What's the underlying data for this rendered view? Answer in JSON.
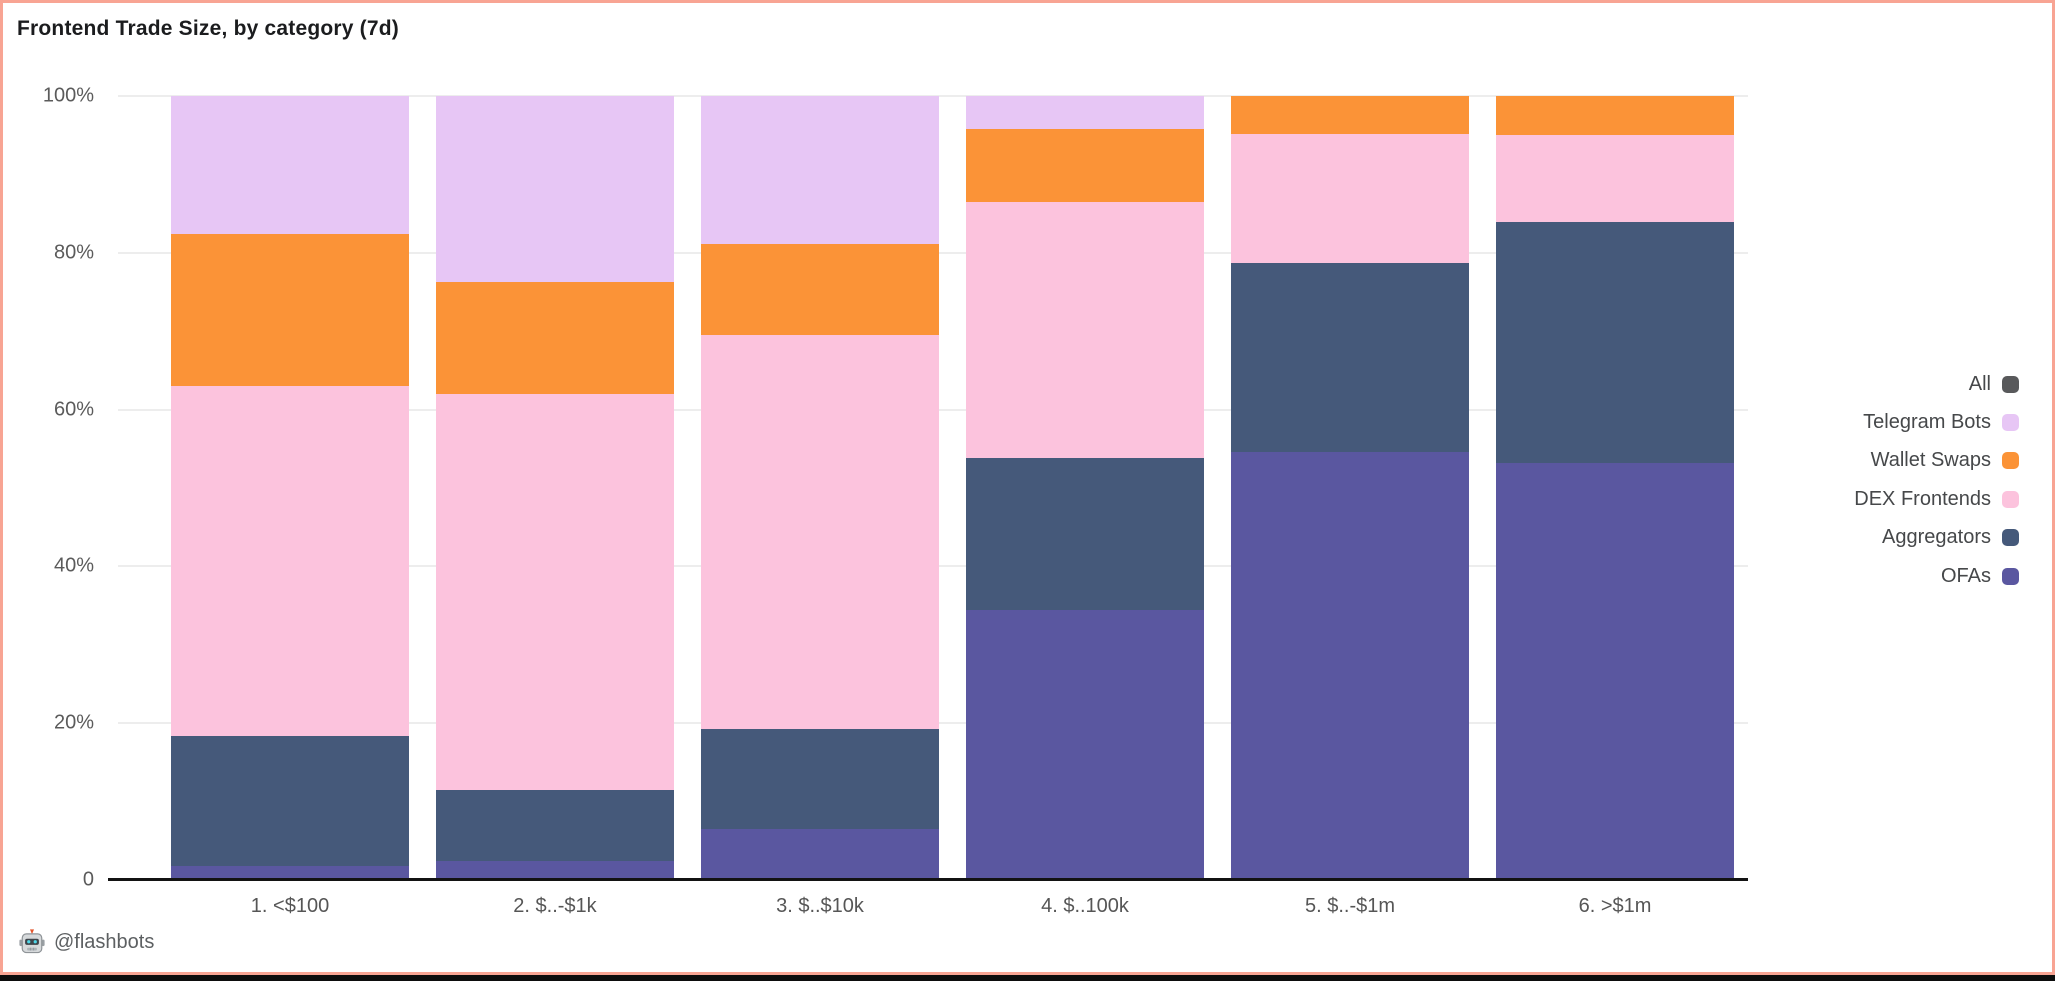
{
  "frame": {
    "border_color": "#f8a493",
    "bottom_bar_color": "#0c0c0c",
    "background": "#ffffff"
  },
  "header": {
    "title": "Frontend Trade Size, by category (7d)"
  },
  "footer": {
    "attribution": "@flashbots",
    "icon": "flashbots-robot-emoji"
  },
  "axes": {
    "y_ticks": [
      {
        "label": "100%",
        "value": 100
      },
      {
        "label": "80%",
        "value": 80
      },
      {
        "label": "60%",
        "value": 60
      },
      {
        "label": "40%",
        "value": 40
      },
      {
        "label": "20%",
        "value": 20
      },
      {
        "label": "0",
        "value": 0
      }
    ],
    "grid_color": "#ededed",
    "axis_line_color": "#131313",
    "tick_label_color": "#5b5b5b"
  },
  "legend": {
    "position": "right",
    "items": [
      {
        "label": "All",
        "color": "#58595b"
      },
      {
        "label": "Telegram Bots",
        "color": "#e7c6f5"
      },
      {
        "label": "Wallet Swaps",
        "color": "#fb9337"
      },
      {
        "label": "DEX Frontends",
        "color": "#fcc3dd"
      },
      {
        "label": "Aggregators",
        "color": "#45597a"
      },
      {
        "label": "OFAs",
        "color": "#5a57a0"
      }
    ]
  },
  "chart_data": {
    "type": "bar",
    "stacked": true,
    "normalized": true,
    "title": "Frontend Trade Size, by category (7d)",
    "xlabel": "",
    "ylabel": "",
    "unit": "percent",
    "ylim": [
      0,
      100
    ],
    "grid": true,
    "legend_position": "right",
    "categories": [
      "1. <$100",
      "2. $..-$1k",
      "3. $..$10k",
      "4. $..100k",
      "5. $..-$1m",
      "6. >$1m"
    ],
    "series": [
      {
        "name": "OFAs",
        "color": "#5a57a0",
        "values": [
          1.9,
          2.5,
          6.6,
          34.5,
          54.6,
          53.2
        ]
      },
      {
        "name": "Aggregators",
        "color": "#45597a",
        "values": [
          16.6,
          9.1,
          12.8,
          19.4,
          24.1,
          30.8
        ]
      },
      {
        "name": "DEX Frontends",
        "color": "#fcc3dd",
        "values": [
          44.5,
          50.4,
          50.2,
          32.6,
          16.5,
          11.0
        ]
      },
      {
        "name": "Wallet Swaps",
        "color": "#fb9337",
        "values": [
          19.4,
          14.3,
          11.5,
          9.3,
          4.8,
          5.0
        ]
      },
      {
        "name": "Telegram Bots",
        "color": "#e7c6f5",
        "values": [
          17.6,
          23.7,
          18.9,
          4.2,
          0,
          0
        ]
      },
      {
        "name": "All",
        "color": "#58595b",
        "values": [
          0,
          0,
          0,
          0,
          0,
          0
        ]
      }
    ]
  }
}
